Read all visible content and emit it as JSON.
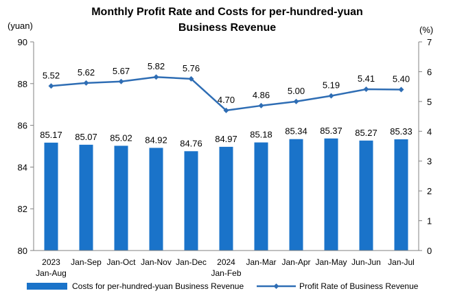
{
  "chart_data": {
    "type": "bar",
    "title_lines": [
      "Monthly Profit Rate and Costs for per-hundred-yuan",
      "Business Revenue"
    ],
    "left_unit": "(yuan)",
    "right_unit": "(%)",
    "categories": [
      [
        "2023",
        "Jan-Aug"
      ],
      [
        "Jan-Sep"
      ],
      [
        "Jan-Oct"
      ],
      [
        "Jan-Nov"
      ],
      [
        "Jan-Dec"
      ],
      [
        "2024",
        "Jan-Feb"
      ],
      [
        "Jan-Mar"
      ],
      [
        "Jan-Apr"
      ],
      [
        "Jan-May"
      ],
      [
        "Jun-Jun"
      ],
      [
        "Jan-Jul"
      ]
    ],
    "left_axis": {
      "min": 80,
      "max": 90,
      "ticks": [
        "80",
        "82",
        "84",
        "86",
        "88",
        "90"
      ]
    },
    "right_axis": {
      "min": 0,
      "max": 7,
      "ticks": [
        "0",
        "1",
        "2",
        "3",
        "4",
        "5",
        "6",
        "7"
      ]
    },
    "series": [
      {
        "name": "Costs for per-hundred-yuan Business Revenue",
        "type": "bar",
        "axis": "left",
        "color": "#1A73C9",
        "values": [
          85.17,
          85.07,
          85.02,
          84.92,
          84.76,
          84.97,
          85.18,
          85.34,
          85.37,
          85.27,
          85.33
        ],
        "labels": [
          "85.17",
          "85.07",
          "85.02",
          "84.92",
          "84.76",
          "84.97",
          "85.18",
          "85.34",
          "85.37",
          "85.27",
          "85.33"
        ]
      },
      {
        "name": "Profit Rate of Business Revenue",
        "type": "line",
        "axis": "right",
        "color": "#2E6DB4",
        "marker": "diamond",
        "values": [
          5.52,
          5.62,
          5.67,
          5.82,
          5.76,
          4.7,
          4.86,
          5.0,
          5.19,
          5.41,
          5.4
        ],
        "labels": [
          "5.52",
          "5.62",
          "5.67",
          "5.82",
          "5.76",
          "4.70",
          "4.86",
          "5.00",
          "5.19",
          "5.41",
          "5.40"
        ]
      }
    ],
    "legend_position": "bottom",
    "grid": false
  }
}
